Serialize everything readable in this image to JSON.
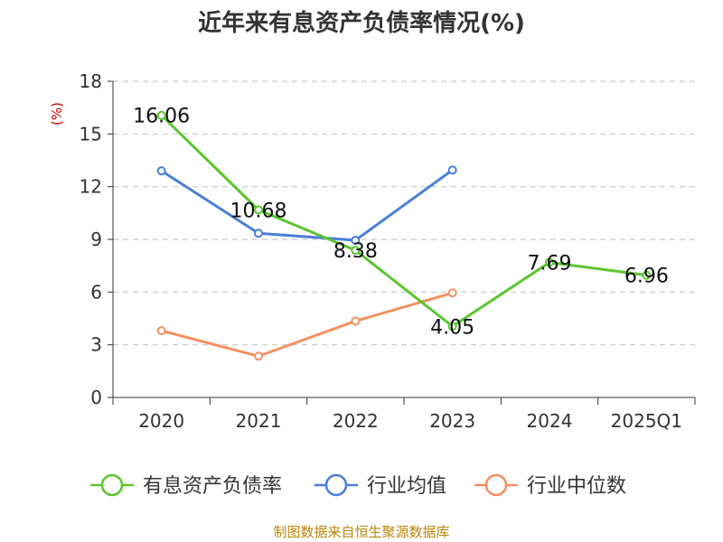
{
  "chart_data": {
    "type": "line",
    "title": "近年来有息资产负债率情况(%)",
    "ylabel": "(%)",
    "categories": [
      "2020",
      "2021",
      "2022",
      "2023",
      "2024",
      "2025Q1"
    ],
    "ylim": [
      0,
      18
    ],
    "yticks": [
      0,
      3,
      6,
      9,
      12,
      15,
      18
    ],
    "grid": "horizontal-dashed",
    "legend_position": "bottom",
    "series": [
      {
        "name": "有息资产负债率",
        "color": "#5cc530",
        "values": [
          16.06,
          10.68,
          8.38,
          4.05,
          7.69,
          6.96
        ],
        "labels": [
          "16.06",
          "10.68",
          "8.38",
          "4.05",
          "7.69",
          "6.96"
        ]
      },
      {
        "name": "行业均值",
        "color": "#4a7fd8",
        "values": [
          12.9,
          9.35,
          8.95,
          12.95,
          null,
          null
        ]
      },
      {
        "name": "行业中位数",
        "color": "#f29161",
        "values": [
          3.8,
          2.35,
          4.35,
          5.95,
          null,
          null
        ]
      }
    ],
    "source": "制图数据来自恒生聚源数据库"
  }
}
